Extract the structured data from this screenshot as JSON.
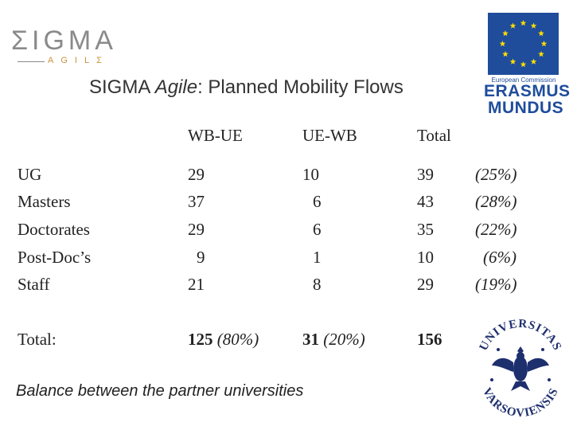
{
  "logo": {
    "word": "ΣIGMA",
    "sub": "AGILΣ"
  },
  "title": {
    "prefix": "SIGMA ",
    "italic": "Agile",
    "suffix": ": Planned Mobility Flows"
  },
  "erasmus_logo": {
    "top_text": "European Commission",
    "line1": "ERASMUS",
    "line2": "MUNDUS"
  },
  "table": {
    "headers": [
      "WB-UE",
      "UE-WB",
      "Total"
    ],
    "rows": [
      {
        "label": "UG",
        "wb_ue": "29",
        "ue_wb": "10",
        "total": "39",
        "pct": "(25%)"
      },
      {
        "label": "Masters",
        "wb_ue": "37",
        "ue_wb": "6",
        "total": "43",
        "pct": "(28%)"
      },
      {
        "label": "Doctorates",
        "wb_ue": "29",
        "ue_wb": "6",
        "total": "35",
        "pct": "(22%)"
      },
      {
        "label": "Post-Doc’s",
        "wb_ue": "9",
        "ue_wb": "1",
        "total": "10",
        "pct": "(6%)"
      },
      {
        "label": "Staff",
        "wb_ue": "21",
        "ue_wb": "8",
        "total": "29",
        "pct": "(19%)"
      }
    ],
    "totals": {
      "label": "Total:",
      "wb_ue": "125",
      "wb_ue_pct": "(80%)",
      "ue_wb": "31",
      "ue_wb_pct": "(20%)",
      "total": "156"
    }
  },
  "footer": "Balance between the partner universities",
  "university_seal": {
    "top": "UNIVERSITAS",
    "bottom": "VARSOVIENSIS"
  },
  "colors": {
    "eu_blue": "#1f4d9c",
    "eu_star": "#ffdd00",
    "sigma_gold": "#c8923b"
  }
}
